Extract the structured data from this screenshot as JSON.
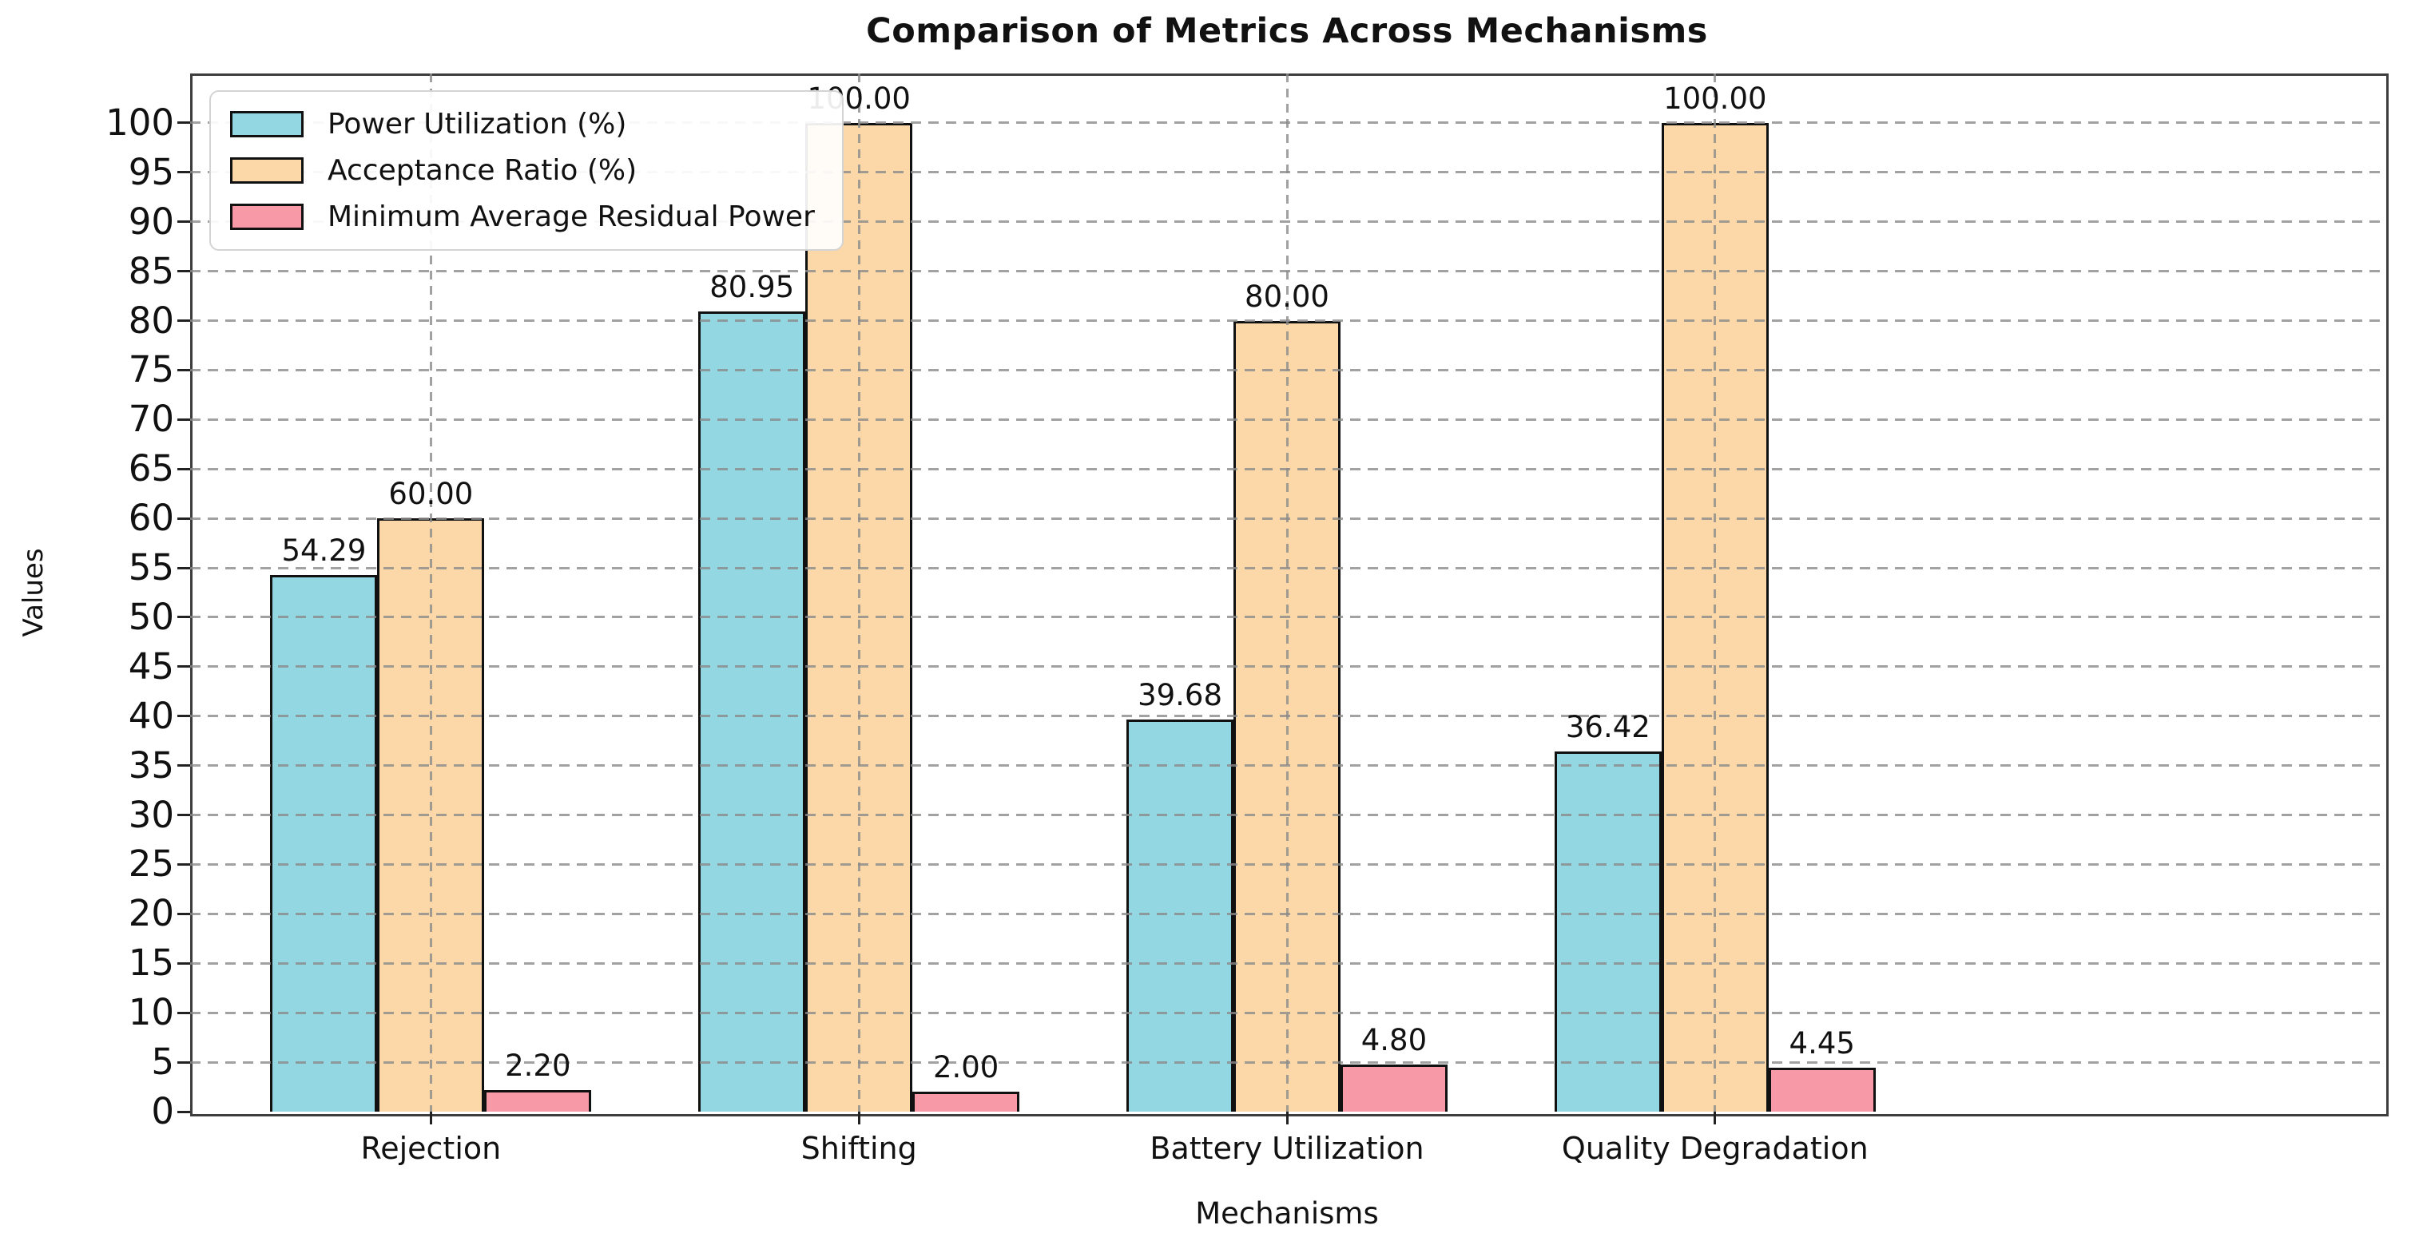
{
  "chart_data": {
    "type": "bar",
    "title": "Comparison of Metrics Across Mechanisms",
    "xlabel": "Mechanisms",
    "ylabel": "Values",
    "categories": [
      "Rejection",
      "Shifting",
      "Battery Utilization",
      "Quality Degradation"
    ],
    "series": [
      {
        "name": "Power Utilization (%)",
        "color": "#92D7E2",
        "values": [
          54.29,
          80.95,
          39.68,
          36.42
        ]
      },
      {
        "name": "Acceptance Ratio (%)",
        "color": "#FCD8A8",
        "values": [
          60.0,
          100.0,
          80.0,
          100.0
        ]
      },
      {
        "name": "Minimum Average Residual Power",
        "color": "#F899A8",
        "values": [
          2.2,
          2.0,
          4.8,
          4.45
        ]
      }
    ],
    "value_labels": [
      [
        "54.29",
        "80.95",
        "39.68",
        "36.42"
      ],
      [
        "60.00",
        "100.00",
        "80.00",
        "100.00"
      ],
      [
        "2.20",
        "2.00",
        "4.80",
        "4.45"
      ]
    ],
    "yticks": [
      0,
      5,
      10,
      15,
      20,
      25,
      30,
      35,
      40,
      45,
      50,
      55,
      60,
      65,
      70,
      75,
      80,
      85,
      90,
      95,
      100
    ],
    "ylim": [
      0,
      105
    ],
    "grid": true,
    "grid_color": "#8a8a8a",
    "bar_edge_color": "#111111",
    "legend_position": "upper left"
  }
}
